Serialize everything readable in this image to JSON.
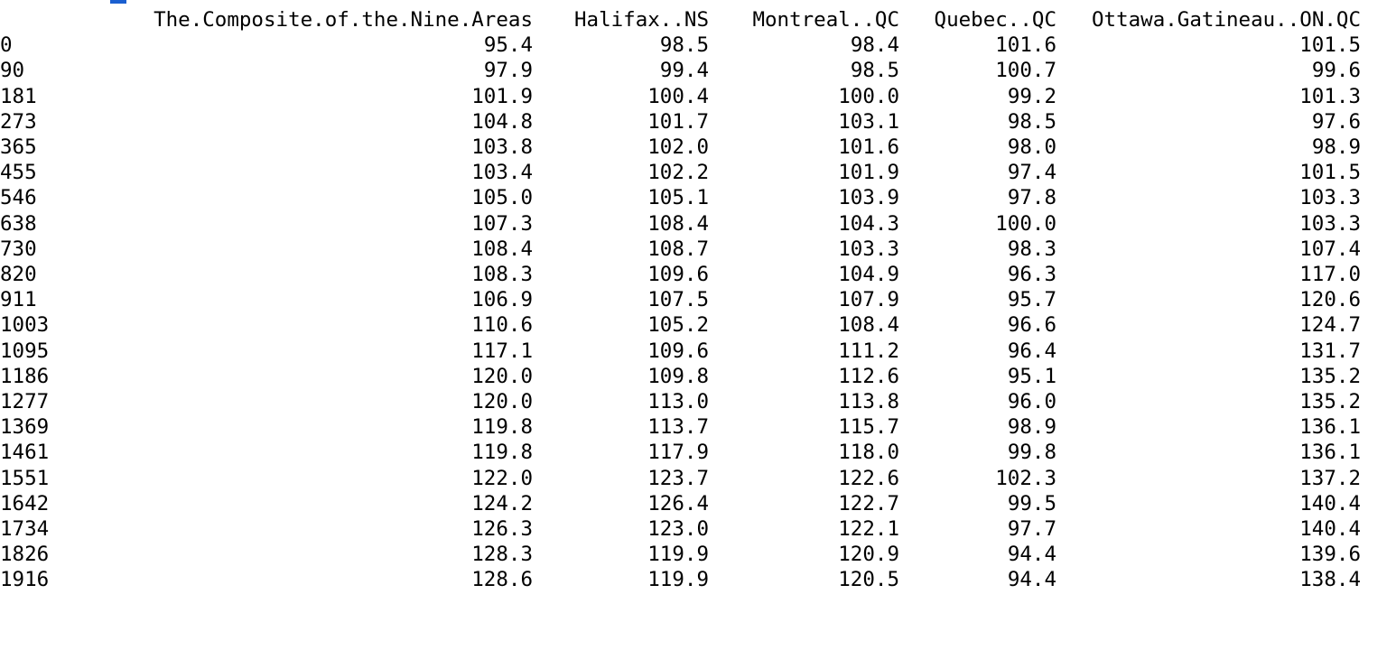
{
  "table": {
    "row_name_header": "",
    "columns": [
      "The.Composite.of.the.Nine.Areas",
      "Halifax..NS",
      "Montreal..QC",
      "Quebec..QC",
      "Ottawa.Gatineau..ON.QC"
    ],
    "rows": [
      {
        "name": "0",
        "values": [
          "95.4",
          "98.5",
          "98.4",
          "101.6",
          "101.5"
        ]
      },
      {
        "name": "90",
        "values": [
          "97.9",
          "99.4",
          "98.5",
          "100.7",
          "99.6"
        ]
      },
      {
        "name": "181",
        "values": [
          "101.9",
          "100.4",
          "100.0",
          "99.2",
          "101.3"
        ]
      },
      {
        "name": "273",
        "values": [
          "104.8",
          "101.7",
          "103.1",
          "98.5",
          "97.6"
        ]
      },
      {
        "name": "365",
        "values": [
          "103.8",
          "102.0",
          "101.6",
          "98.0",
          "98.9"
        ]
      },
      {
        "name": "455",
        "values": [
          "103.4",
          "102.2",
          "101.9",
          "97.4",
          "101.5"
        ]
      },
      {
        "name": "546",
        "values": [
          "105.0",
          "105.1",
          "103.9",
          "97.8",
          "103.3"
        ]
      },
      {
        "name": "638",
        "values": [
          "107.3",
          "108.4",
          "104.3",
          "100.0",
          "103.3"
        ]
      },
      {
        "name": "730",
        "values": [
          "108.4",
          "108.7",
          "103.3",
          "98.3",
          "107.4"
        ]
      },
      {
        "name": "820",
        "values": [
          "108.3",
          "109.6",
          "104.9",
          "96.3",
          "117.0"
        ]
      },
      {
        "name": "911",
        "values": [
          "106.9",
          "107.5",
          "107.9",
          "95.7",
          "120.6"
        ]
      },
      {
        "name": "1003",
        "values": [
          "110.6",
          "105.2",
          "108.4",
          "96.6",
          "124.7"
        ]
      },
      {
        "name": "1095",
        "values": [
          "117.1",
          "109.6",
          "111.2",
          "96.4",
          "131.7"
        ]
      },
      {
        "name": "1186",
        "values": [
          "120.0",
          "109.8",
          "112.6",
          "95.1",
          "135.2"
        ]
      },
      {
        "name": "1277",
        "values": [
          "120.0",
          "113.0",
          "113.8",
          "96.0",
          "135.2"
        ]
      },
      {
        "name": "1369",
        "values": [
          "119.8",
          "113.7",
          "115.7",
          "98.9",
          "136.1"
        ]
      },
      {
        "name": "1461",
        "values": [
          "119.8",
          "117.9",
          "118.0",
          "99.8",
          "136.1"
        ]
      },
      {
        "name": "1551",
        "values": [
          "122.0",
          "123.7",
          "122.6",
          "102.3",
          "137.2"
        ]
      },
      {
        "name": "1642",
        "values": [
          "124.2",
          "126.4",
          "122.7",
          "99.5",
          "140.4"
        ]
      },
      {
        "name": "1734",
        "values": [
          "126.3",
          "123.0",
          "122.1",
          "97.7",
          "140.4"
        ]
      },
      {
        "name": "1826",
        "values": [
          "128.3",
          "119.9",
          "120.9",
          "94.4",
          "139.6"
        ]
      },
      {
        "name": "1916",
        "values": [
          "128.6",
          "119.9",
          "120.5",
          "94.4",
          "138.4"
        ]
      }
    ]
  },
  "colors": {
    "background": "#ffffff",
    "text": "#000000",
    "cursor_mark": "#1a5fd0"
  }
}
